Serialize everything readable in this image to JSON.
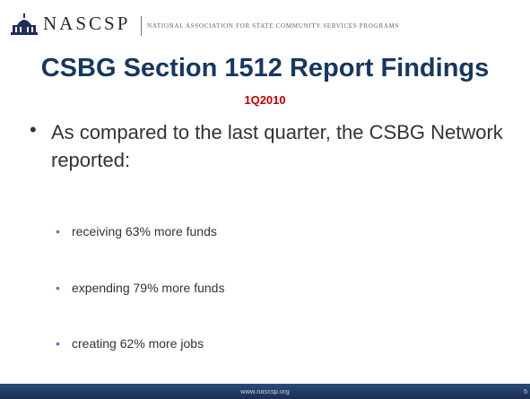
{
  "header": {
    "org_name": "NASCSP",
    "org_full_name": "NATIONAL ASSOCIATION FOR STATE COMMUNITY SERVICES PROGRAMS"
  },
  "title": "CSBG Section 1512 Report Findings",
  "subtitle": "1Q2010",
  "main_bullet": "As compared to the last quarter, the CSBG Network reported:",
  "sub_bullets": [
    "receiving 63% more funds",
    "expending 79% more funds",
    "creating 62% more jobs"
  ],
  "footer": {
    "url": "www.nascsp.org",
    "page": "5"
  }
}
